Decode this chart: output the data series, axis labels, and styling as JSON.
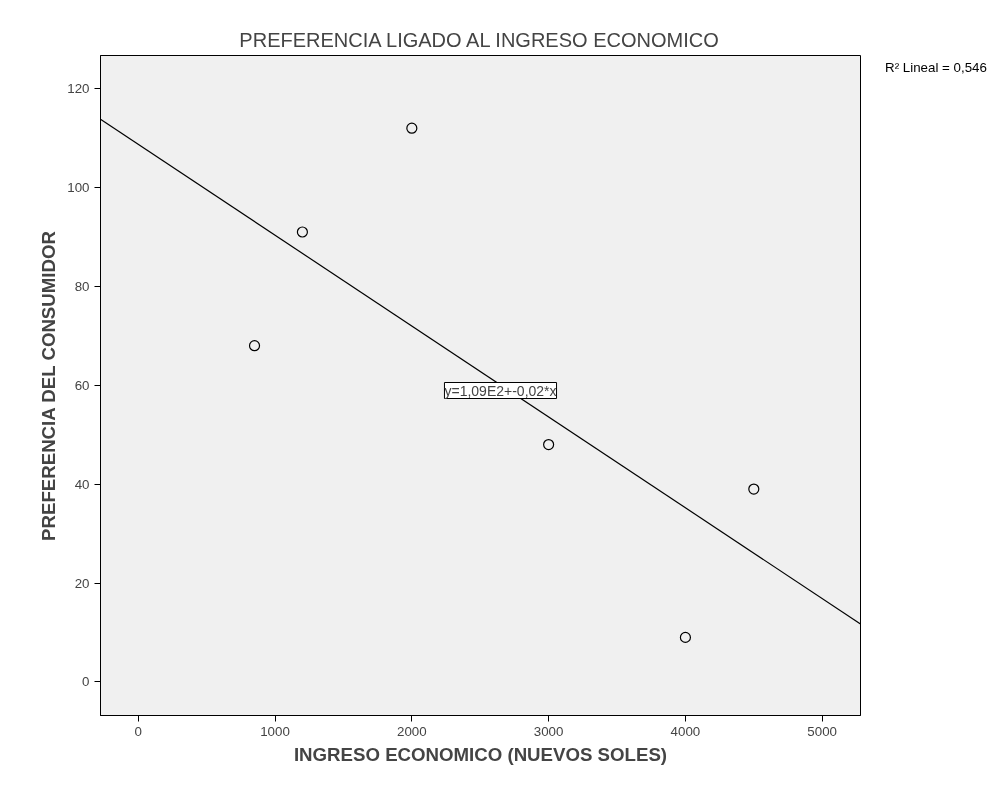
{
  "chart_data": {
    "type": "scatter",
    "title": "PREFERENCIA LIGADO AL INGRESO ECONOMICO",
    "xlabel": "INGRESO ECONOMICO (NUEVOS SOLES)",
    "ylabel": "PREFERENCIA DEL CONSUMIDOR",
    "series": [
      {
        "color": "#000000",
        "marker": "circle",
        "x": [
          850,
          1200,
          2000,
          3000,
          4000,
          4500
        ],
        "values": [
          68,
          91,
          112,
          48,
          9,
          39
        ]
      },
      {
        "type": "line",
        "color": "#000000",
        "line_style": "solid",
        "x": [
          -276,
          5280
        ],
        "values": [
          113.8,
          11.7
        ]
      }
    ],
    "xlim": [
      -276,
      5280
    ],
    "xticks": [
      0,
      1000,
      2000,
      3000,
      4000,
      5000
    ],
    "ylim": [
      -6.8,
      126.7
    ],
    "yticks": [
      0,
      20,
      40,
      60,
      80,
      100,
      120
    ],
    "grid": false,
    "annotations": [
      "y=1,09E2+-0,02*x",
      "R² Lineal = 0,546"
    ]
  }
}
